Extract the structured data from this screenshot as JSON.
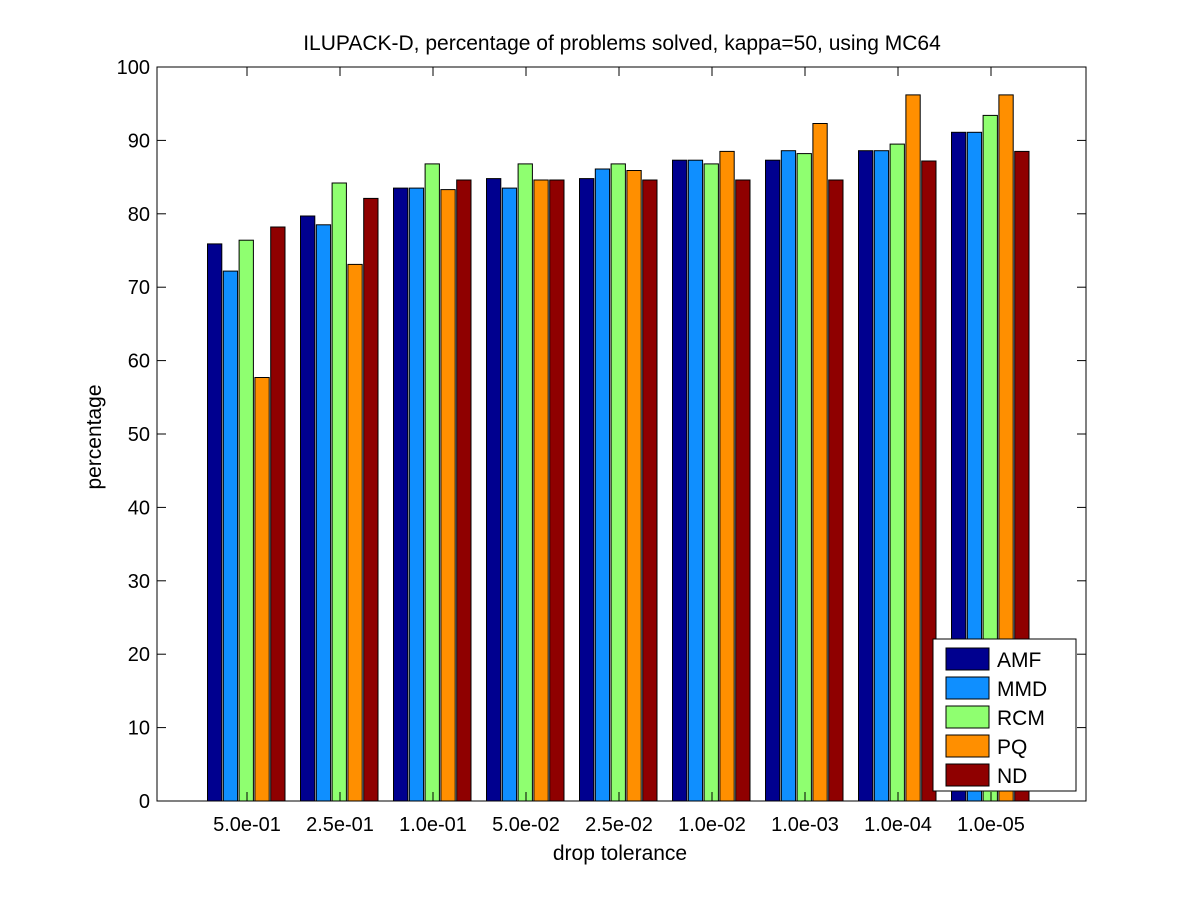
{
  "chart_data": {
    "type": "bar",
    "title": "ILUPACK-D, percentage of problems solved, kappa=50, using MC64",
    "xlabel": "drop tolerance",
    "ylabel": "percentage",
    "ylim": [
      0,
      100
    ],
    "yticks": [
      "0",
      "10",
      "20",
      "30",
      "40",
      "50",
      "60",
      "70",
      "80",
      "90",
      "100"
    ],
    "categories": [
      "5.0e-01",
      "2.5e-01",
      "1.0e-01",
      "5.0e-02",
      "2.5e-02",
      "1.0e-02",
      "1.0e-03",
      "1.0e-04",
      "1.0e-05"
    ],
    "series": [
      {
        "name": "AMF",
        "color": "#00008f",
        "values": [
          75.9,
          79.7,
          83.5,
          84.8,
          84.8,
          87.3,
          87.3,
          88.6,
          91.1
        ]
      },
      {
        "name": "MMD",
        "color": "#0f8fff",
        "values": [
          72.2,
          78.5,
          83.5,
          83.5,
          86.1,
          87.3,
          88.6,
          88.6,
          91.1
        ]
      },
      {
        "name": "RCM",
        "color": "#8fff70",
        "values": [
          76.4,
          84.2,
          86.8,
          86.8,
          86.8,
          86.8,
          88.2,
          89.5,
          93.4
        ]
      },
      {
        "name": "PQ",
        "color": "#ff8f00",
        "values": [
          57.7,
          73.1,
          83.3,
          84.6,
          85.9,
          88.5,
          92.3,
          96.2,
          96.2
        ]
      },
      {
        "name": "ND",
        "color": "#8f0000",
        "values": [
          78.2,
          82.1,
          84.6,
          84.6,
          84.6,
          84.6,
          84.6,
          87.2,
          88.5
        ]
      }
    ],
    "grid": false,
    "legend_position": "bottom-right"
  }
}
